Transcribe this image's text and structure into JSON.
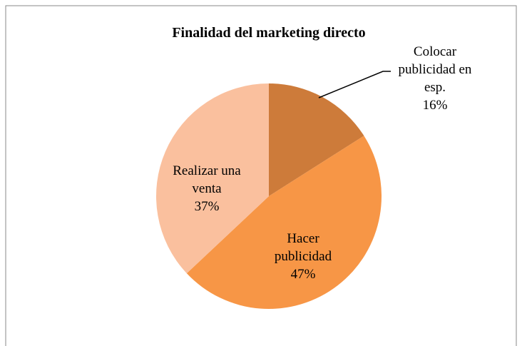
{
  "chart_data": {
    "type": "pie",
    "title": "Finalidad del marketing directo",
    "categories": [
      "Colocar publicidad en esp.",
      "Hacer publicidad",
      "Realizar una venta"
    ],
    "values": [
      16,
      47,
      37
    ],
    "value_labels": [
      "16%",
      "47%",
      "37%"
    ],
    "colors": [
      "#cd7b3a",
      "#f79646",
      "#fac09e"
    ]
  }
}
